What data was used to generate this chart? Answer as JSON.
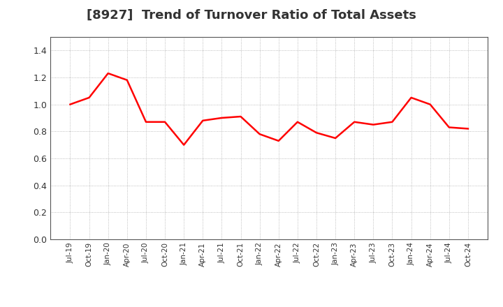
{
  "title": "[8927]  Trend of Turnover Ratio of Total Assets",
  "title_fontsize": 13,
  "title_color": "#333333",
  "line_color": "#FF0000",
  "line_width": 1.8,
  "background_color": "#FFFFFF",
  "grid_color": "#AAAAAA",
  "ylim": [
    0.0,
    1.5
  ],
  "yticks": [
    0.0,
    0.2,
    0.4,
    0.6,
    0.8,
    1.0,
    1.2,
    1.4
  ],
  "x_labels": [
    "Jul-19",
    "Oct-19",
    "Jan-20",
    "Apr-20",
    "Jul-20",
    "Oct-20",
    "Jan-21",
    "Apr-21",
    "Jul-21",
    "Oct-21",
    "Jan-22",
    "Apr-22",
    "Jul-22",
    "Oct-22",
    "Jan-23",
    "Apr-23",
    "Jul-23",
    "Oct-23",
    "Jan-24",
    "Apr-24",
    "Jul-24",
    "Oct-24"
  ],
  "y_values": [
    1.0,
    1.05,
    1.23,
    1.18,
    0.87,
    0.87,
    0.7,
    0.88,
    0.9,
    0.91,
    0.78,
    0.73,
    0.87,
    0.79,
    0.75,
    0.87,
    0.85,
    0.87,
    1.05,
    1.0,
    0.83,
    0.82
  ]
}
